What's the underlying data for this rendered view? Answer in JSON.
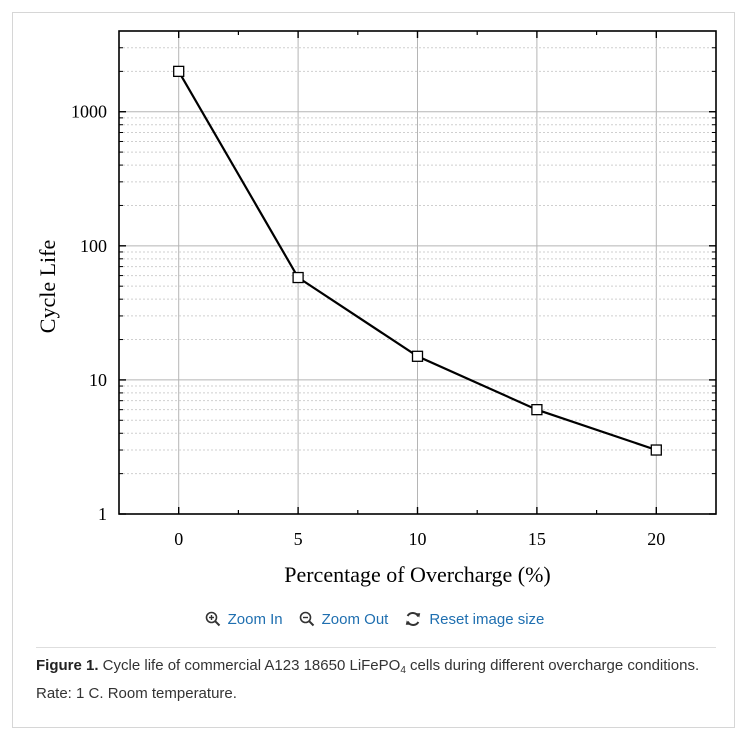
{
  "chart_data": {
    "type": "line",
    "x": [
      0,
      5,
      10,
      15,
      20
    ],
    "series": [
      {
        "values": [
          2000,
          58,
          15,
          6,
          3
        ]
      }
    ],
    "xlabel": "Percentage of Overcharge (%)",
    "ylabel": "Cycle Life",
    "xlim": [
      -2.5,
      22.5
    ],
    "ylim": [
      1,
      4000
    ],
    "yscale": "log",
    "xticks": [
      "0",
      "5",
      "10",
      "15",
      "20"
    ],
    "yticks": [
      "1",
      "10",
      "100",
      "1000"
    ],
    "marker": "open-square",
    "grid": true,
    "line_color": "#000000"
  },
  "controls": {
    "zoom_in": "Zoom In",
    "zoom_out": "Zoom Out",
    "reset": "Reset image size"
  },
  "caption": {
    "label": "Figure 1.",
    "text_before": " Cycle life of commercial A123 18650 LiFePO",
    "subscript": "4",
    "text_after": " cells during different overcharge conditions. Rate: 1 C. Room temperature."
  }
}
